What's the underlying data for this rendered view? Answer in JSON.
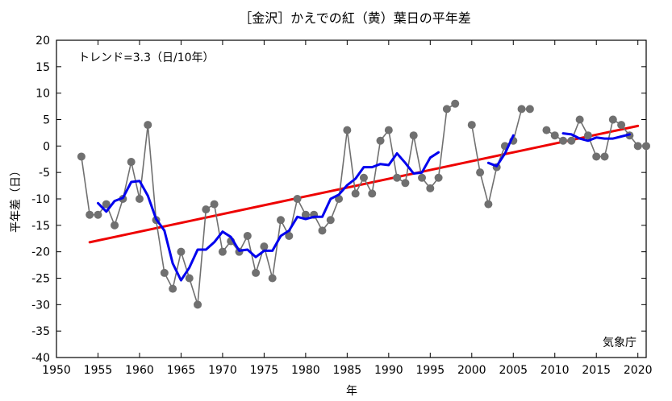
{
  "chart_data": {
    "type": "line",
    "title": "［金沢］かえでの紅（黄）葉日の平年差",
    "xlabel": "年",
    "ylabel": "平年差（日）",
    "trend_label": "トレンド=3.3（日/10年）",
    "source_label": "気象庁",
    "xlim": [
      1950,
      2021
    ],
    "ylim": [
      -40,
      20
    ],
    "x_ticks": [
      1950,
      1955,
      1960,
      1965,
      1970,
      1975,
      1980,
      1985,
      1990,
      1995,
      2000,
      2005,
      2010,
      2015,
      2020
    ],
    "y_ticks": [
      -40,
      -35,
      -30,
      -25,
      -20,
      -15,
      -10,
      -5,
      0,
      5,
      10,
      15,
      20
    ],
    "grid": false,
    "series": [
      {
        "kind": "observed",
        "color": "#707070",
        "x": [
          1953,
          1954,
          1955,
          1956,
          1957,
          1958,
          1959,
          1960,
          1961,
          1962,
          1963,
          1964,
          1965,
          1966,
          1967,
          1968,
          1969,
          1970,
          1971,
          1972,
          1973,
          1974,
          1975,
          1976,
          1977,
          1978,
          1979,
          1980,
          1981,
          1982,
          1983,
          1984,
          1985,
          1986,
          1987,
          1988,
          1989,
          1990,
          1991,
          1992,
          1993,
          1994,
          1995,
          1996,
          1997,
          1998,
          1999,
          2000,
          2001,
          2002,
          2003,
          2004,
          2005,
          2006,
          2007,
          2008,
          2009,
          2010,
          2011,
          2012,
          2013,
          2014,
          2015,
          2016,
          2017,
          2018,
          2019,
          2020,
          2021
        ],
        "y": [
          -2,
          -13,
          -13,
          -11,
          -15,
          -10,
          -3,
          -10,
          4,
          -14,
          -24,
          -27,
          -20,
          -25,
          -30,
          -12,
          -11,
          -20,
          -18,
          -20,
          -17,
          -24,
          -19,
          -25,
          -14,
          -17,
          -10,
          -13,
          -13,
          -16,
          -14,
          -10,
          3,
          -9,
          -6,
          -9,
          1,
          3,
          -6,
          -7,
          2,
          -6,
          -8,
          -6,
          7,
          8,
          null,
          4,
          -5,
          -11,
          -4,
          0,
          1,
          7,
          7,
          null,
          3,
          2,
          1,
          1,
          5,
          2,
          -2,
          -2,
          5,
          4,
          2,
          0,
          0
        ]
      },
      {
        "kind": "moving-average",
        "color": "#0000ee",
        "x": [
          1955,
          1956,
          1957,
          1958,
          1959,
          1960,
          1961,
          1962,
          1963,
          1964,
          1965,
          1966,
          1967,
          1968,
          1969,
          1970,
          1971,
          1972,
          1973,
          1974,
          1975,
          1976,
          1977,
          1978,
          1979,
          1980,
          1981,
          1982,
          1983,
          1984,
          1985,
          1986,
          1987,
          1988,
          1989,
          1990,
          1991,
          1992,
          1993,
          1994,
          1995,
          1996,
          1997,
          1998,
          1999,
          2000,
          2001,
          2002,
          2003,
          2004,
          2005,
          2006,
          2007,
          2008,
          2009,
          2010,
          2011,
          2012,
          2013,
          2014,
          2015,
          2016,
          2017,
          2018,
          2019
        ],
        "y": [
          -10.8,
          -12.4,
          -10.4,
          -9.8,
          -6.8,
          -6.6,
          -9.4,
          -13.8,
          -16,
          -22.2,
          -25.4,
          -23,
          -19.6,
          -19.6,
          -18.2,
          -16.2,
          -17.2,
          -19.8,
          -19.6,
          -21,
          -19.8,
          -19.8,
          -17,
          -16,
          -13.4,
          -13.8,
          -13.4,
          -13.4,
          -10,
          -9.2,
          -7.4,
          -6.2,
          -4,
          -4,
          -3.4,
          -3.6,
          -1.4,
          -3.2,
          -5.2,
          -5,
          -2.2,
          -1.2,
          null,
          null,
          null,
          null,
          null,
          -3.2,
          -3.8,
          -1.4,
          2,
          null,
          null,
          null,
          null,
          null,
          2.4,
          2.2,
          1.4,
          1,
          1.6,
          1.4,
          1.4,
          1.8,
          2.2
        ]
      },
      {
        "kind": "trend",
        "color": "#ee0000",
        "x": [
          1954,
          2020
        ],
        "y": [
          -18.2,
          3.8
        ]
      }
    ]
  }
}
